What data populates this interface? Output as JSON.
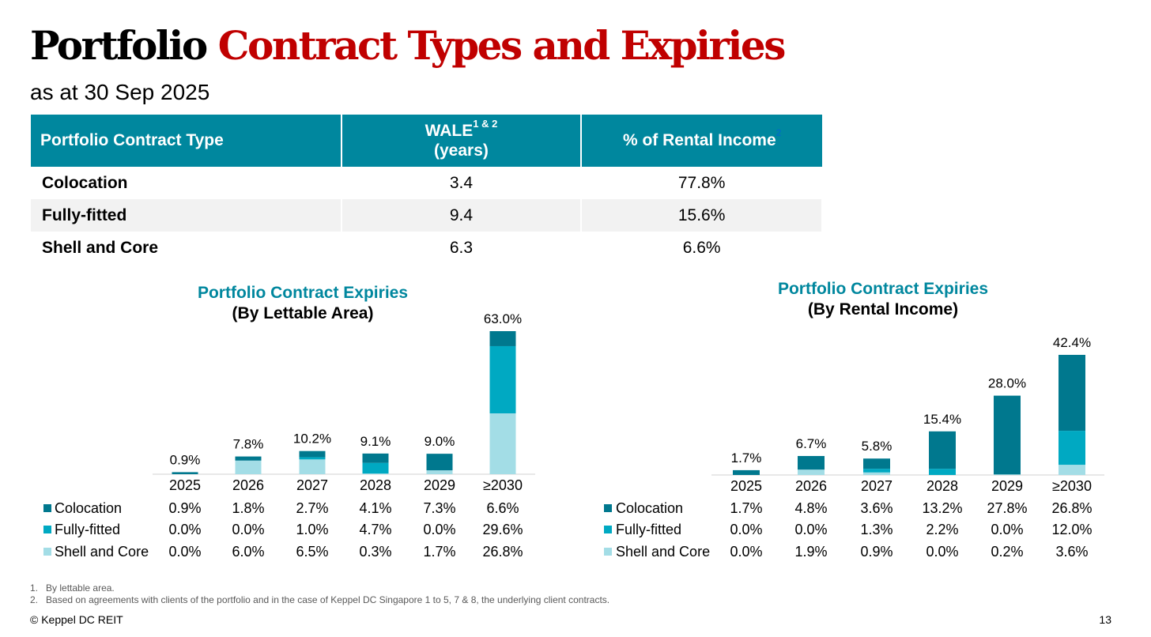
{
  "title": {
    "part1": "Portfolio",
    "part2": "Contract Types and Expiries"
  },
  "subtitle": "as at 30 Sep 2025",
  "colors": {
    "colocation": "#00788e",
    "fully_fitted": "#00a9c2",
    "shell_core": "#a3dde6",
    "header": "#00879e",
    "accent_red": "#c00000"
  },
  "table": {
    "headers": {
      "type": "Portfolio Contract Type",
      "wale": "WALE",
      "wale_sup": "1 & 2",
      "wale_unit": "(years)",
      "income": "% of Rental Income",
      "income_sup": "2"
    },
    "rows": [
      {
        "type": "Colocation",
        "wale": "3.4",
        "income": "77.8%"
      },
      {
        "type": "Fully-fitted",
        "wale": "9.4",
        "income": "15.6%"
      },
      {
        "type": "Shell and Core",
        "wale": "6.3",
        "income": "6.6%"
      }
    ]
  },
  "chart_data": [
    {
      "type": "bar",
      "stacked": true,
      "title": "Portfolio Contract Expiries",
      "subtitle": "(By Lettable Area)",
      "categories": [
        "2025",
        "2026",
        "2027",
        "2028",
        "2029",
        "≥2030"
      ],
      "totals": [
        "0.9%",
        "7.8%",
        "10.2%",
        "9.1%",
        "9.0%",
        "63.0%"
      ],
      "series": [
        {
          "name": "Colocation",
          "values": [
            0.9,
            1.8,
            2.7,
            4.1,
            7.3,
            6.6
          ],
          "labels": [
            "0.9%",
            "1.8%",
            "2.7%",
            "4.1%",
            "7.3%",
            "6.6%"
          ]
        },
        {
          "name": "Fully-fitted",
          "values": [
            0.0,
            0.0,
            1.0,
            4.7,
            0.0,
            29.6
          ],
          "labels": [
            "0.0%",
            "0.0%",
            "1.0%",
            "4.7%",
            "0.0%",
            "29.6%"
          ]
        },
        {
          "name": "Shell and Core",
          "values": [
            0.0,
            6.0,
            6.5,
            0.3,
            1.7,
            26.8
          ],
          "labels": [
            "0.0%",
            "6.0%",
            "6.5%",
            "0.3%",
            "1.7%",
            "26.8%"
          ]
        }
      ],
      "ylim": [
        0,
        63.0
      ]
    },
    {
      "type": "bar",
      "stacked": true,
      "title": "Portfolio Contract Expiries",
      "subtitle": "(By Rental Income)",
      "categories": [
        "2025",
        "2026",
        "2027",
        "2028",
        "2029",
        "≥2030"
      ],
      "totals": [
        "1.7%",
        "6.7%",
        "5.8%",
        "15.4%",
        "28.0%",
        "42.4%"
      ],
      "series": [
        {
          "name": "Colocation",
          "values": [
            1.7,
            4.8,
            3.6,
            13.2,
            27.8,
            26.8
          ],
          "labels": [
            "1.7%",
            "4.8%",
            "3.6%",
            "13.2%",
            "27.8%",
            "26.8%"
          ]
        },
        {
          "name": "Fully-fitted",
          "values": [
            0.0,
            0.0,
            1.3,
            2.2,
            0.0,
            12.0
          ],
          "labels": [
            "0.0%",
            "0.0%",
            "1.3%",
            "2.2%",
            "0.0%",
            "12.0%"
          ]
        },
        {
          "name": "Shell and Core",
          "values": [
            0.0,
            1.9,
            0.9,
            0.0,
            0.2,
            3.6
          ],
          "labels": [
            "0.0%",
            "1.9%",
            "0.9%",
            "0.0%",
            "0.2%",
            "3.6%"
          ]
        }
      ],
      "ylim": [
        0,
        42.4
      ]
    }
  ],
  "footnotes": [
    {
      "num": "1.",
      "text": "By lettable area."
    },
    {
      "num": "2.",
      "text": "Based on agreements with clients of the portfolio and in the case of Keppel DC Singapore 1 to 5, 7 & 8, the underlying client contracts."
    }
  ],
  "copyright": "© Keppel DC REIT",
  "page_number": "13"
}
